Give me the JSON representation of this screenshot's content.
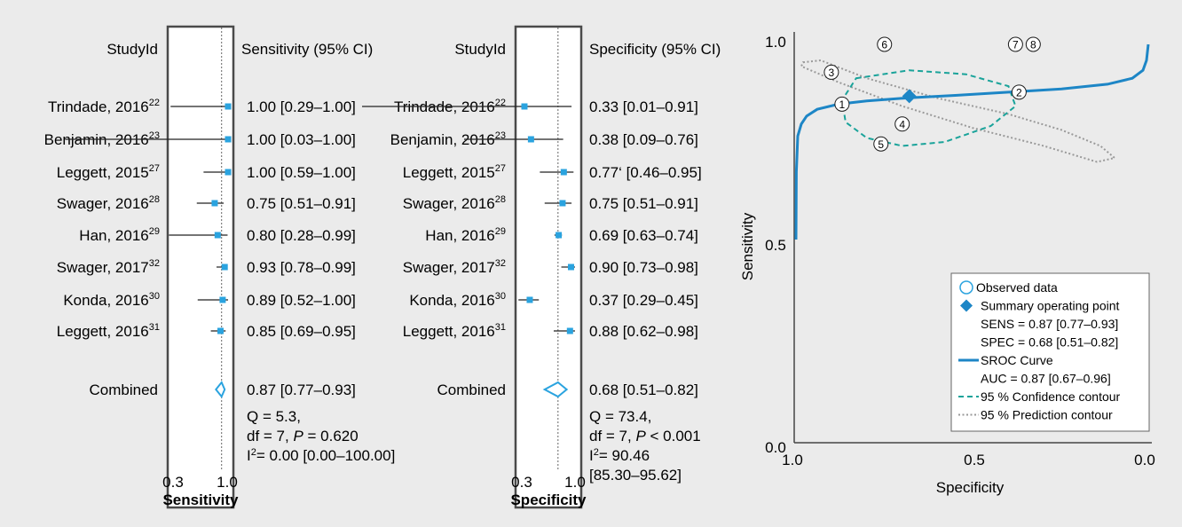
{
  "background_color": "#ebebeb",
  "marker_color": "#2aa3df",
  "sroc_color": "#1d86c6",
  "confidence_color": "#1aa39a",
  "prediction_color": "#999999",
  "sensitivity_panel": {
    "studyid_header": "StudyId",
    "estimate_header": "Sensitivity (95% CI)",
    "combined_label": "Combined",
    "combined_estimate": "0.87 [0.77–0.93]",
    "stats": [
      {
        "parts": [
          {
            "t": "Q = 5.3,"
          }
        ]
      },
      {
        "parts": [
          {
            "t": "df = 7, "
          },
          {
            "t": "P",
            "i": true
          },
          {
            "t": " = 0.620"
          }
        ]
      },
      {
        "parts": [
          {
            "t": "I"
          },
          {
            "t": "2",
            "sup": true
          },
          {
            "t": "= 0.00 [0.00–100.00]"
          }
        ]
      }
    ],
    "axis_tick_labels": [
      "0.3",
      "1.0"
    ],
    "axis_title": "Sensitivity"
  },
  "specificity_panel": {
    "studyid_header": "StudyId",
    "estimate_header": "Specificity (95% CI)",
    "combined_label": "Combined",
    "combined_estimate": "0.68 [0.51–0.82]",
    "stats": [
      {
        "parts": [
          {
            "t": "Q = 73.4,"
          }
        ]
      },
      {
        "parts": [
          {
            "t": "df = 7, "
          },
          {
            "t": "P",
            "i": true
          },
          {
            "t": " < 0.001"
          }
        ]
      },
      {
        "parts": [
          {
            "t": "I"
          },
          {
            "t": "2",
            "sup": true
          },
          {
            "t": "= 90.46"
          }
        ]
      },
      {
        "parts": [
          {
            "t": "[85.30–95.62]"
          }
        ]
      }
    ],
    "axis_tick_labels": [
      "0.3",
      "1.0"
    ],
    "axis_title": "Specificity"
  },
  "sroc_panel": {
    "ylabel": "Sensitivity",
    "xlabel": "Specificity",
    "y_ticks": [
      "1.0",
      "0.5",
      "0.0"
    ],
    "x_ticks": [
      "1.0",
      "0.5",
      "0.0"
    ],
    "legend": [
      {
        "kind": "circle",
        "text": "Observed data"
      },
      {
        "kind": "diamond",
        "text": "Summary operating point"
      },
      {
        "kind": "none",
        "text": "SENS = 0.87 [0.77–0.93]"
      },
      {
        "kind": "none",
        "text": "SPEC = 0.68 [0.51–0.82]"
      },
      {
        "kind": "line",
        "text": "SROC Curve"
      },
      {
        "kind": "none",
        "text": "AUC = 0.87 [0.67–0.96]"
      },
      {
        "kind": "dash",
        "text": "95 % Confidence contour"
      },
      {
        "kind": "dot",
        "text": "95 % Prediction contour"
      }
    ]
  },
  "chart_data": [
    {
      "type": "forest",
      "axis_range": [
        0.3,
        1.0
      ],
      "reference_line": 0.87,
      "studies": [
        {
          "name": "Trindade, 2016",
          "ref": "22",
          "est": 1.0,
          "lo": 0.29,
          "hi": 1.0,
          "ci_text": "1.00 [0.29–1.00]"
        },
        {
          "name": "Benjamin, 2016",
          "ref": "23",
          "est": 1.0,
          "lo": 0.03,
          "hi": 1.0,
          "ci_text": "1.00 [0.03–1.00]"
        },
        {
          "name": "Leggett, 2015",
          "ref": "27",
          "est": 1.0,
          "lo": 0.59,
          "hi": 1.0,
          "ci_text": "1.00 [0.59–1.00]"
        },
        {
          "name": "Swager, 2016",
          "ref": "28",
          "est": 0.75,
          "lo": 0.51,
          "hi": 0.91,
          "ci_text": "0.75 [0.51–0.91]"
        },
        {
          "name": "Han, 2016",
          "ref": "29",
          "est": 0.8,
          "lo": 0.28,
          "hi": 0.99,
          "ci_text": "0.80 [0.28–0.99]"
        },
        {
          "name": "Swager, 2017",
          "ref": "32",
          "est": 0.93,
          "lo": 0.78,
          "hi": 0.99,
          "ci_text": "0.93 [0.78–0.99]"
        },
        {
          "name": "Konda, 2016",
          "ref": "30",
          "est": 0.89,
          "lo": 0.52,
          "hi": 1.0,
          "ci_text": "0.89 [0.52–1.00]"
        },
        {
          "name": "Leggett, 2016",
          "ref": "31",
          "est": 0.85,
          "lo": 0.69,
          "hi": 0.95,
          "ci_text": "0.85 [0.69–0.95]"
        }
      ],
      "combined": {
        "est": 0.87,
        "lo": 0.77,
        "hi": 0.93
      }
    },
    {
      "type": "forest",
      "axis_range": [
        0.3,
        1.0
      ],
      "reference_line": 0.68,
      "studies": [
        {
          "name": "Trindade, 2016",
          "ref": "22",
          "est": 0.33,
          "lo": 0.01,
          "hi": 0.91,
          "ci_text": "0.33 [0.01–0.91]"
        },
        {
          "name": "Benjamin, 2016",
          "ref": "23",
          "est": 0.38,
          "lo": 0.09,
          "hi": 0.76,
          "ci_text": "0.38 [0.09–0.76]"
        },
        {
          "name": "Leggett, 2015",
          "ref": "27",
          "est": 0.77,
          "lo": 0.46,
          "hi": 0.95,
          "ci_text": "0.77‘ [0.46–0.95]"
        },
        {
          "name": "Swager, 2016",
          "ref": "28",
          "est": 0.75,
          "lo": 0.51,
          "hi": 0.91,
          "ci_text": "0.75 [0.51–0.91]"
        },
        {
          "name": "Han, 2016",
          "ref": "29",
          "est": 0.69,
          "lo": 0.63,
          "hi": 0.74,
          "ci_text": "0.69 [0.63–0.74]"
        },
        {
          "name": "Swager, 2017",
          "ref": "32",
          "est": 0.9,
          "lo": 0.73,
          "hi": 0.98,
          "ci_text": "0.90 [0.73–0.98]"
        },
        {
          "name": "Konda, 2016",
          "ref": "30",
          "est": 0.37,
          "lo": 0.29,
          "hi": 0.45,
          "ci_text": "0.37 [0.29–0.45]"
        },
        {
          "name": "Leggett, 2016",
          "ref": "31",
          "est": 0.88,
          "lo": 0.62,
          "hi": 0.98,
          "ci_text": "0.88 [0.62–0.98]"
        }
      ],
      "combined": {
        "est": 0.68,
        "lo": 0.51,
        "hi": 0.82
      }
    },
    {
      "type": "scatter",
      "x_reversed": true,
      "xlim": [
        1.0,
        0.0
      ],
      "ylim": [
        0.0,
        1.0
      ],
      "observed": [
        {
          "label": "1",
          "spec": 0.87,
          "sens": 0.85
        },
        {
          "label": "2",
          "spec": 0.37,
          "sens": 0.88
        },
        {
          "label": "3",
          "spec": 0.9,
          "sens": 0.93
        },
        {
          "label": "4",
          "spec": 0.7,
          "sens": 0.8
        },
        {
          "label": "5",
          "spec": 0.76,
          "sens": 0.75
        },
        {
          "label": "6",
          "spec": 0.75,
          "sens": 1.0
        },
        {
          "label": "7",
          "spec": 0.38,
          "sens": 1.0
        },
        {
          "label": "8",
          "spec": 0.33,
          "sens": 1.0
        }
      ],
      "summary_point": {
        "spec": 0.68,
        "sens": 0.87
      },
      "sroc_curve": [
        [
          1.0,
          0.51
        ],
        [
          0.999,
          0.68
        ],
        [
          0.995,
          0.77
        ],
        [
          0.985,
          0.8
        ],
        [
          0.97,
          0.82
        ],
        [
          0.94,
          0.837
        ],
        [
          0.88,
          0.85
        ],
        [
          0.8,
          0.858
        ],
        [
          0.68,
          0.866
        ],
        [
          0.55,
          0.872
        ],
        [
          0.4,
          0.88
        ],
        [
          0.25,
          0.888
        ],
        [
          0.12,
          0.9
        ],
        [
          0.05,
          0.915
        ],
        [
          0.02,
          0.935
        ],
        [
          0.01,
          0.96
        ],
        [
          0.005,
          1.0
        ]
      ],
      "confidence_contour": [
        [
          0.83,
          0.915
        ],
        [
          0.68,
          0.935
        ],
        [
          0.52,
          0.925
        ],
        [
          0.4,
          0.895
        ],
        [
          0.38,
          0.845
        ],
        [
          0.45,
          0.795
        ],
        [
          0.58,
          0.755
        ],
        [
          0.7,
          0.745
        ],
        [
          0.8,
          0.765
        ],
        [
          0.86,
          0.805
        ],
        [
          0.87,
          0.86
        ]
      ],
      "prediction_contour": [
        [
          0.98,
          0.955
        ],
        [
          0.93,
          0.96
        ],
        [
          0.8,
          0.915
        ],
        [
          0.6,
          0.865
        ],
        [
          0.4,
          0.825
        ],
        [
          0.25,
          0.785
        ],
        [
          0.14,
          0.745
        ],
        [
          0.1,
          0.715
        ],
        [
          0.15,
          0.705
        ],
        [
          0.3,
          0.745
        ],
        [
          0.5,
          0.79
        ],
        [
          0.7,
          0.845
        ],
        [
          0.88,
          0.905
        ],
        [
          0.985,
          0.945
        ]
      ]
    }
  ]
}
